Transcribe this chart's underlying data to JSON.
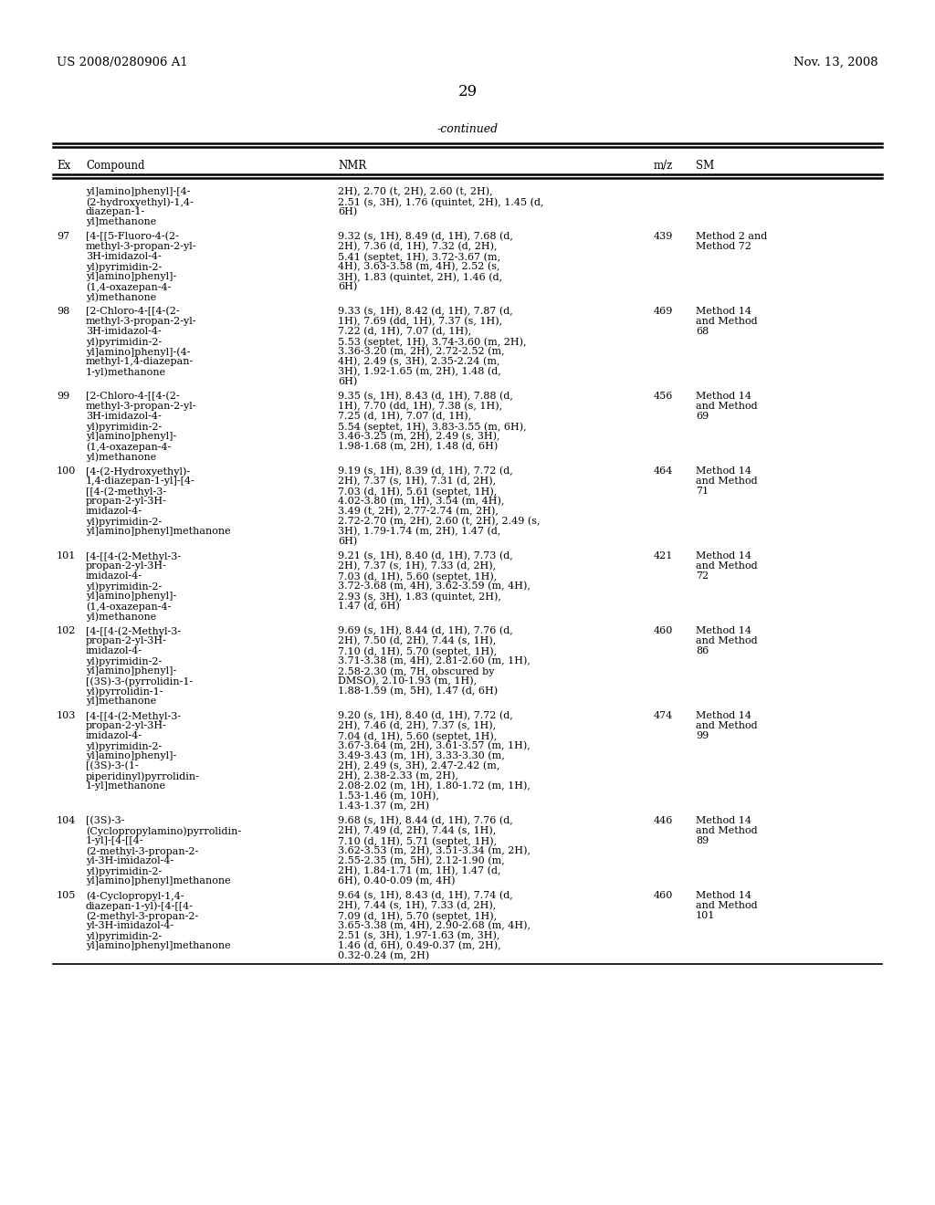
{
  "header_left": "US 2008/0280906 A1",
  "header_right": "Nov. 13, 2008",
  "page_number": "29",
  "table_title": "-continued",
  "background_color": "#ffffff",
  "text_color": "#000000",
  "rows": [
    {
      "ex": "",
      "compound": "yl]amino]phenyl]-[4-\n(2-hydroxyethyl)-1,4-\ndiazepan-1-\nyl]methanone",
      "nmr": "2H), 2.70 (t, 2H), 2.60 (t, 2H),\n2.51 (s, 3H), 1.76 (quintet, 2H), 1.45 (d,\n6H)",
      "mz": "",
      "sm": ""
    },
    {
      "ex": "97",
      "compound": "[4-[[5-Fluoro-4-(2-\nmethyl-3-propan-2-yl-\n3H-imidazol-4-\nyl)pyrimidin-2-\nyl]amino]phenyl]-\n(1,4-oxazepan-4-\nyl)methanone",
      "nmr": "9.32 (s, 1H), 8.49 (d, 1H), 7.68 (d,\n2H), 7.36 (d, 1H), 7.32 (d, 2H),\n5.41 (septet, 1H), 3.72-3.67 (m,\n4H), 3.63-3.58 (m, 4H), 2.52 (s,\n3H), 1.83 (quintet, 2H), 1.46 (d,\n6H)",
      "mz": "439",
      "sm": "Method 2 and\nMethod 72"
    },
    {
      "ex": "98",
      "compound": "[2-Chloro-4-[[4-(2-\nmethyl-3-propan-2-yl-\n3H-imidazol-4-\nyl)pyrimidin-2-\nyl]amino]phenyl]-(4-\nmethyl-1,4-diazepan-\n1-yl)methanone",
      "nmr": "9.33 (s, 1H), 8.42 (d, 1H), 7.87 (d,\n1H), 7.69 (dd, 1H), 7.37 (s, 1H),\n7.22 (d, 1H), 7.07 (d, 1H),\n5.53 (septet, 1H), 3.74-3.60 (m, 2H),\n3.36-3.20 (m, 2H), 2.72-2.52 (m,\n4H), 2.49 (s, 3H), 2.35-2.24 (m,\n3H), 1.92-1.65 (m, 2H), 1.48 (d,\n6H)",
      "mz": "469",
      "sm": "Method 14\nand Method\n68"
    },
    {
      "ex": "99",
      "compound": "[2-Chloro-4-[[4-(2-\nmethyl-3-propan-2-yl-\n3H-imidazol-4-\nyl)pyrimidin-2-\nyl]amino]phenyl]-\n(1,4-oxazepan-4-\nyl)methanone",
      "nmr": "9.35 (s, 1H), 8.43 (d, 1H), 7.88 (d,\n1H), 7.70 (dd, 1H), 7.38 (s, 1H),\n7.25 (d, 1H), 7.07 (d, 1H),\n5.54 (septet, 1H), 3.83-3.55 (m, 6H),\n3.46-3.25 (m, 2H), 2.49 (s, 3H),\n1.98-1.68 (m, 2H), 1.48 (d, 6H)",
      "mz": "456",
      "sm": "Method 14\nand Method\n69"
    },
    {
      "ex": "100",
      "compound": "[4-(2-Hydroxyethyl)-\n1,4-diazepan-1-yl]-[4-\n[[4-(2-methyl-3-\npropan-2-yl-3H-\nimidazol-4-\nyl)pyrimidin-2-\nyl]amino]phenyl]methanone",
      "nmr": "9.19 (s, 1H), 8.39 (d, 1H), 7.72 (d,\n2H), 7.37 (s, 1H), 7.31 (d, 2H),\n7.03 (d, 1H), 5.61 (septet, 1H),\n4.02-3.80 (m, 1H), 3.54 (m, 4H),\n3.49 (t, 2H), 2.77-2.74 (m, 2H),\n2.72-2.70 (m, 2H), 2.60 (t, 2H), 2.49 (s,\n3H), 1.79-1.74 (m, 2H), 1.47 (d,\n6H)",
      "mz": "464",
      "sm": "Method 14\nand Method\n71"
    },
    {
      "ex": "101",
      "compound": "[4-[[4-(2-Methyl-3-\npropan-2-yl-3H-\nimidazol-4-\nyl)pyrimidin-2-\nyl]amino]phenyl]-\n(1,4-oxazepan-4-\nyl)methanone",
      "nmr": "9.21 (s, 1H), 8.40 (d, 1H), 7.73 (d,\n2H), 7.37 (s, 1H), 7.33 (d, 2H),\n7.03 (d, 1H), 5.60 (septet, 1H),\n3.72-3.68 (m, 4H), 3.62-3.59 (m, 4H),\n2.93 (s, 3H), 1.83 (quintet, 2H),\n1.47 (d, 6H)",
      "mz": "421",
      "sm": "Method 14\nand Method\n72"
    },
    {
      "ex": "102",
      "compound": "[4-[[4-(2-Methyl-3-\npropan-2-yl-3H-\nimidazol-4-\nyl)pyrimidin-2-\nyl]amino]phenyl]-\n[(3S)-3-(pyrrolidin-1-\nyl)pyrrolidin-1-\nyl]methanone",
      "nmr": "9.69 (s, 1H), 8.44 (d, 1H), 7.76 (d,\n2H), 7.50 (d, 2H), 7.44 (s, 1H),\n7.10 (d, 1H), 5.70 (septet, 1H),\n3.71-3.38 (m, 4H), 2.81-2.60 (m, 1H),\n2.58-2.30 (m, 7H, obscured by\nDMSO), 2.10-1.93 (m, 1H),\n1.88-1.59 (m, 5H), 1.47 (d, 6H)",
      "mz": "460",
      "sm": "Method 14\nand Method\n86"
    },
    {
      "ex": "103",
      "compound": "[4-[[4-(2-Methyl-3-\npropan-2-yl-3H-\nimidazol-4-\nyl)pyrimidin-2-\nyl]amino]phenyl]-\n[(3S)-3-(1-\npiperidinyl)pyrrolidin-\n1-yl]methanone",
      "nmr": "9.20 (s, 1H), 8.40 (d, 1H), 7.72 (d,\n2H), 7.46 (d, 2H), 7.37 (s, 1H),\n7.04 (d, 1H), 5.60 (septet, 1H),\n3.67-3.64 (m, 2H), 3.61-3.57 (m, 1H),\n3.49-3.43 (m, 1H), 3.33-3.30 (m,\n2H), 2.49 (s, 3H), 2.47-2.42 (m,\n2H), 2.38-2.33 (m, 2H),\n2.08-2.02 (m, 1H), 1.80-1.72 (m, 1H),\n1.53-1.46 (m, 10H),\n1.43-1.37 (m, 2H)",
      "mz": "474",
      "sm": "Method 14\nand Method\n99"
    },
    {
      "ex": "104",
      "compound": "[(3S)-3-\n(Cyclopropylamino)pyrrolidin-\n1-yl]-[4-[[4-\n(2-methyl-3-propan-2-\nyl-3H-imidazol-4-\nyl)pyrimidin-2-\nyl]amino]phenyl]methanone",
      "nmr": "9.68 (s, 1H), 8.44 (d, 1H), 7.76 (d,\n2H), 7.49 (d, 2H), 7.44 (s, 1H),\n7.10 (d, 1H), 5.71 (septet, 1H),\n3.62-3.53 (m, 2H), 3.51-3.34 (m, 2H),\n2.55-2.35 (m, 5H), 2.12-1.90 (m,\n2H), 1.84-1.71 (m, 1H), 1.47 (d,\n6H), 0.40-0.09 (m, 4H)",
      "mz": "446",
      "sm": "Method 14\nand Method\n89"
    },
    {
      "ex": "105",
      "compound": "(4-Cyclopropyl-1,4-\ndiazepan-1-yl)-[4-[[4-\n(2-methyl-3-propan-2-\nyl-3H-imidazol-4-\nyl)pyrimidin-2-\nyl]amino]phenyl]methanone",
      "nmr": "9.64 (s, 1H), 8.43 (d, 1H), 7.74 (d,\n2H), 7.44 (s, 1H), 7.33 (d, 2H),\n7.09 (d, 1H), 5.70 (septet, 1H),\n3.65-3.38 (m, 4H), 2.90-2.68 (m, 4H),\n2.51 (s, 3H), 1.97-1.63 (m, 3H),\n1.46 (d, 6H), 0.49-0.37 (m, 2H),\n0.32-0.24 (m, 2H)",
      "mz": "460",
      "sm": "Method 14\nand Method\n101"
    }
  ]
}
